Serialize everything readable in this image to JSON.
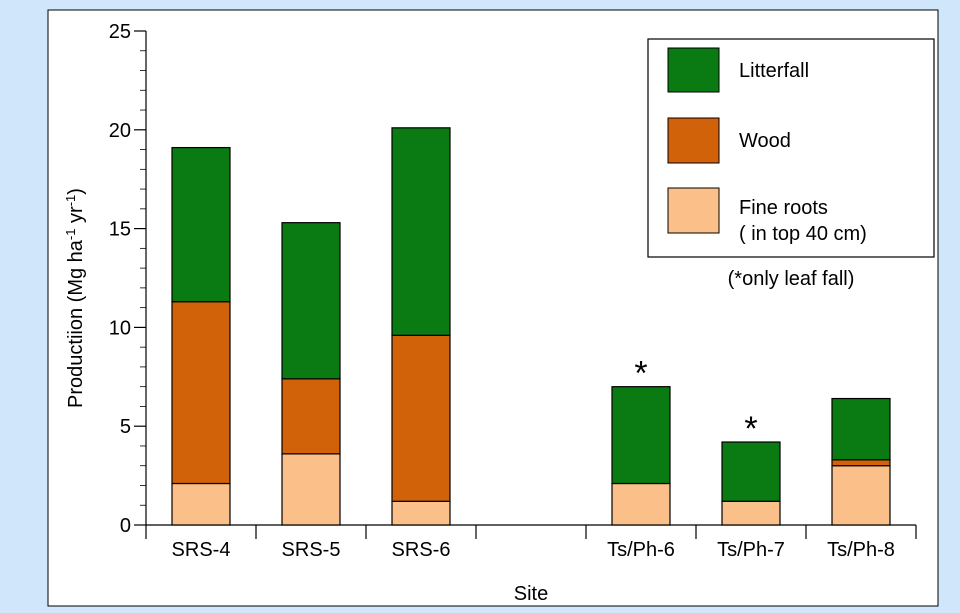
{
  "chart_data": {
    "type": "bar",
    "stacked": true,
    "categories": [
      "SRS-4",
      "SRS-5",
      "SRS-6",
      "",
      "Ts/Ph-6",
      "Ts/Ph-7",
      "Ts/Ph-8"
    ],
    "series": [
      {
        "name": "Fine roots",
        "name_line2": "( in top 40 cm)",
        "color": "#fbc08a",
        "values": [
          2.1,
          3.6,
          1.2,
          null,
          2.1,
          1.2,
          3.0
        ]
      },
      {
        "name": "Wood",
        "color": "#d2620a",
        "values": [
          9.2,
          3.8,
          8.4,
          null,
          0,
          0,
          0.3
        ]
      },
      {
        "name": "Litterfall",
        "color": "#0a7a12",
        "values": [
          7.8,
          7.9,
          10.5,
          null,
          4.9,
          3.0,
          3.1
        ]
      }
    ],
    "totals": [
      19.1,
      15.3,
      20.1,
      null,
      7.0,
      4.2,
      6.4
    ],
    "asterisk_categories": [
      "Ts/Ph-6",
      "Ts/Ph-7"
    ],
    "asterisk_symbol": "*",
    "xlabel": "Site",
    "ylabel": "Production (Mg ha-1 yr-1)",
    "ylabel_parts": {
      "main": "Productiion (Mg ha",
      "exp1": "-1",
      "mid": " yr",
      "exp2": "-1",
      "end": ")"
    },
    "ylim": [
      0,
      25
    ],
    "yticks": [
      0,
      5,
      10,
      15,
      20,
      25
    ],
    "minor_tick_step": 1,
    "legend_position": "top-right",
    "note": "(*only leaf fall)",
    "grid": false,
    "plot_background": "#ffffff",
    "page_background": "#cfe6fb"
  }
}
